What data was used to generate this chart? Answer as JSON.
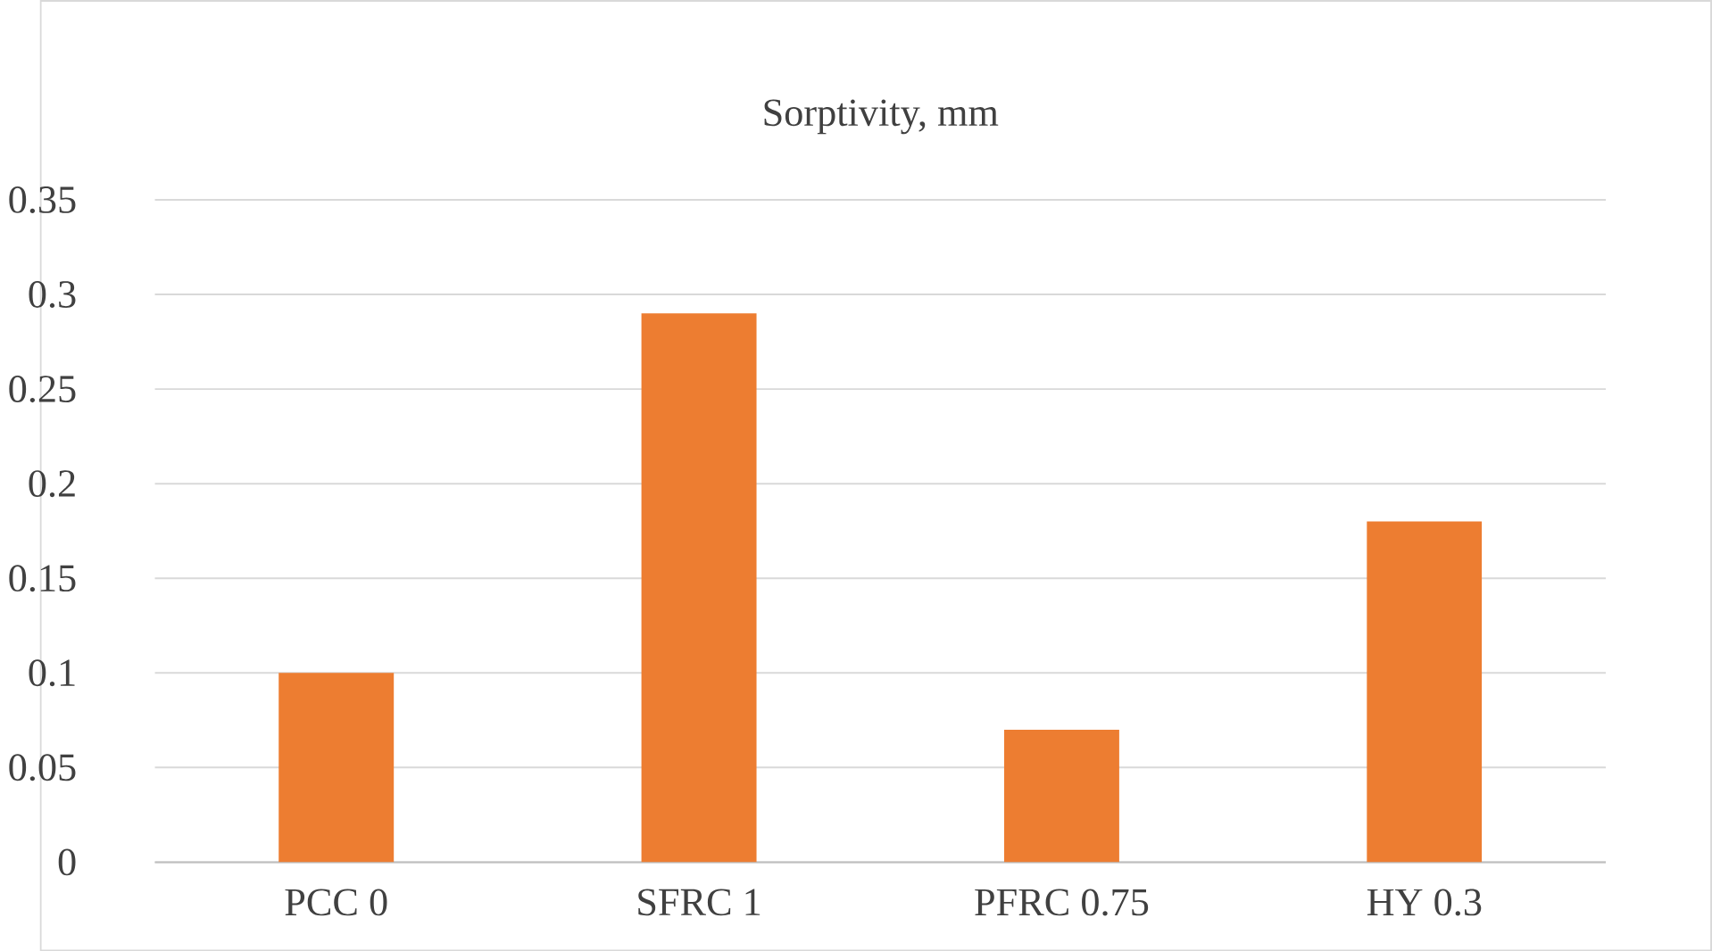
{
  "chart_data": {
    "type": "bar",
    "title": "Sorptivity, mm",
    "categories": [
      "PCC 0",
      "SFRC 1",
      "PFRC 0.75",
      "HY 0.3"
    ],
    "values": [
      0.1,
      0.29,
      0.07,
      0.18
    ],
    "color": "#ed7d31",
    "ylim": [
      0,
      0.35
    ],
    "yticks": [
      0,
      0.05,
      0.1,
      0.15,
      0.2,
      0.25,
      0.3,
      0.35
    ],
    "grid": "y"
  }
}
